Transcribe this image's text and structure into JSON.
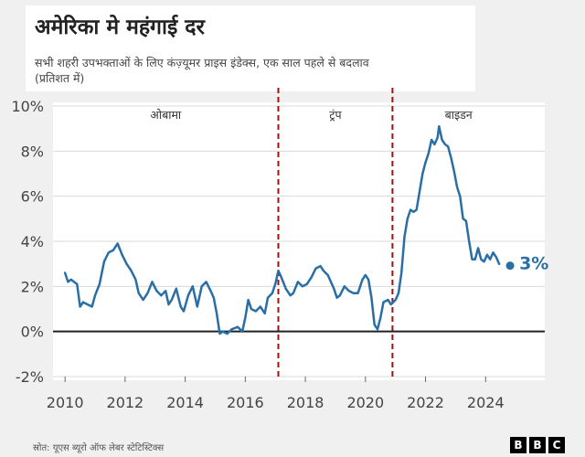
{
  "header": {
    "title": "अमेरिका मे महंगाई दर",
    "subtitle_line1": "सभी शहरी उपभक्ताओं के लिए कंज़्यूमर प्राइस इंडेक्स, एक साल पहले से बदलाव",
    "subtitle_line2": "(प्रतिशत में)"
  },
  "footer": {
    "source": "स्रोत: यूएस ब्यूरो ऑफ लेबर स्टेटिस्टिक्स",
    "logo_letters": [
      "B",
      "B",
      "C"
    ]
  },
  "colors": {
    "line": "#2a6ea6",
    "divider": "#a01010",
    "zero_line": "#222222",
    "grid": "#d8d8d8",
    "plot_bg": "#ffffff",
    "axis_text": "#444444"
  },
  "chart_data": {
    "type": "line",
    "series": [
      {
        "values": [
          [
            2010.0,
            2.6
          ],
          [
            2010.1,
            2.2
          ],
          [
            2010.2,
            2.3
          ],
          [
            2010.4,
            2.1
          ],
          [
            2010.5,
            1.1
          ],
          [
            2010.6,
            1.3
          ],
          [
            2010.75,
            1.2
          ],
          [
            2010.9,
            1.1
          ],
          [
            2011.0,
            1.6
          ],
          [
            2011.15,
            2.1
          ],
          [
            2011.3,
            3.1
          ],
          [
            2011.45,
            3.5
          ],
          [
            2011.6,
            3.6
          ],
          [
            2011.75,
            3.9
          ],
          [
            2011.9,
            3.4
          ],
          [
            2012.05,
            3.0
          ],
          [
            2012.2,
            2.7
          ],
          [
            2012.35,
            2.3
          ],
          [
            2012.45,
            1.7
          ],
          [
            2012.6,
            1.4
          ],
          [
            2012.75,
            1.7
          ],
          [
            2012.9,
            2.2
          ],
          [
            2013.05,
            1.8
          ],
          [
            2013.2,
            1.6
          ],
          [
            2013.35,
            1.8
          ],
          [
            2013.45,
            1.2
          ],
          [
            2013.55,
            1.4
          ],
          [
            2013.7,
            1.9
          ],
          [
            2013.85,
            1.1
          ],
          [
            2013.95,
            0.9
          ],
          [
            2014.1,
            1.6
          ],
          [
            2014.25,
            2.0
          ],
          [
            2014.4,
            1.1
          ],
          [
            2014.55,
            2.0
          ],
          [
            2014.7,
            2.2
          ],
          [
            2014.85,
            1.8
          ],
          [
            2014.95,
            1.5
          ],
          [
            2015.05,
            0.8
          ],
          [
            2015.15,
            -0.1
          ],
          [
            2015.25,
            0.0
          ],
          [
            2015.4,
            -0.1
          ],
          [
            2015.55,
            0.1
          ],
          [
            2015.75,
            0.2
          ],
          [
            2015.9,
            0.0
          ],
          [
            2016.0,
            0.6
          ],
          [
            2016.1,
            1.4
          ],
          [
            2016.2,
            1.0
          ],
          [
            2016.35,
            0.9
          ],
          [
            2016.5,
            1.1
          ],
          [
            2016.65,
            0.8
          ],
          [
            2016.75,
            1.5
          ],
          [
            2016.9,
            1.7
          ],
          [
            2017.0,
            2.1
          ],
          [
            2017.1,
            2.7
          ],
          [
            2017.2,
            2.4
          ],
          [
            2017.35,
            1.9
          ],
          [
            2017.5,
            1.6
          ],
          [
            2017.6,
            1.7
          ],
          [
            2017.75,
            2.2
          ],
          [
            2017.9,
            2.0
          ],
          [
            2018.05,
            2.1
          ],
          [
            2018.2,
            2.4
          ],
          [
            2018.35,
            2.8
          ],
          [
            2018.5,
            2.9
          ],
          [
            2018.6,
            2.7
          ],
          [
            2018.75,
            2.5
          ],
          [
            2018.85,
            2.2
          ],
          [
            2018.95,
            1.9
          ],
          [
            2019.05,
            1.5
          ],
          [
            2019.15,
            1.6
          ],
          [
            2019.3,
            2.0
          ],
          [
            2019.45,
            1.8
          ],
          [
            2019.6,
            1.7
          ],
          [
            2019.75,
            1.7
          ],
          [
            2019.9,
            2.3
          ],
          [
            2020.0,
            2.5
          ],
          [
            2020.1,
            2.3
          ],
          [
            2020.2,
            1.5
          ],
          [
            2020.3,
            0.3
          ],
          [
            2020.4,
            0.1
          ],
          [
            2020.5,
            0.6
          ],
          [
            2020.6,
            1.3
          ],
          [
            2020.75,
            1.4
          ],
          [
            2020.85,
            1.2
          ],
          [
            2021.0,
            1.4
          ],
          [
            2021.1,
            1.7
          ],
          [
            2021.2,
            2.6
          ],
          [
            2021.3,
            4.2
          ],
          [
            2021.4,
            5.0
          ],
          [
            2021.5,
            5.4
          ],
          [
            2021.6,
            5.3
          ],
          [
            2021.7,
            5.4
          ],
          [
            2021.8,
            6.2
          ],
          [
            2021.9,
            7.0
          ],
          [
            2022.0,
            7.5
          ],
          [
            2022.1,
            7.9
          ],
          [
            2022.2,
            8.5
          ],
          [
            2022.3,
            8.3
          ],
          [
            2022.4,
            8.6
          ],
          [
            2022.45,
            9.1
          ],
          [
            2022.55,
            8.5
          ],
          [
            2022.65,
            8.3
          ],
          [
            2022.75,
            8.2
          ],
          [
            2022.85,
            7.7
          ],
          [
            2022.95,
            7.1
          ],
          [
            2023.05,
            6.4
          ],
          [
            2023.15,
            6.0
          ],
          [
            2023.25,
            5.0
          ],
          [
            2023.35,
            4.9
          ],
          [
            2023.45,
            4.0
          ],
          [
            2023.55,
            3.2
          ],
          [
            2023.65,
            3.2
          ],
          [
            2023.75,
            3.7
          ],
          [
            2023.85,
            3.2
          ],
          [
            2023.95,
            3.1
          ],
          [
            2024.05,
            3.4
          ],
          [
            2024.15,
            3.2
          ],
          [
            2024.25,
            3.5
          ],
          [
            2024.35,
            3.3
          ],
          [
            2024.45,
            3.0
          ]
        ]
      }
    ],
    "end_label": "3%",
    "xlim": [
      2009.6,
      2025.3
    ],
    "ylim": [
      -2,
      10
    ],
    "x_ticks": [
      2010,
      2012,
      2014,
      2016,
      2018,
      2020,
      2022,
      2024
    ],
    "x_tick_labels": [
      "2010",
      "2012",
      "2014",
      "2016",
      "2018",
      "2020",
      "2022",
      "2024"
    ],
    "y_ticks": [
      -2,
      0,
      2,
      4,
      6,
      8,
      10
    ],
    "y_tick_labels": [
      "-2%",
      "0%",
      "2%",
      "4%",
      "6%",
      "8%",
      "10%"
    ],
    "grid": true,
    "dividers": [
      2017.1,
      2020.9
    ],
    "periods": [
      {
        "label": "ओबामा",
        "center": 2013.35
      },
      {
        "label": "ट्रंप",
        "center": 2019.0
      },
      {
        "label": "बाइडन",
        "center": 2023.1
      }
    ],
    "xlabel": "",
    "ylabel": ""
  }
}
